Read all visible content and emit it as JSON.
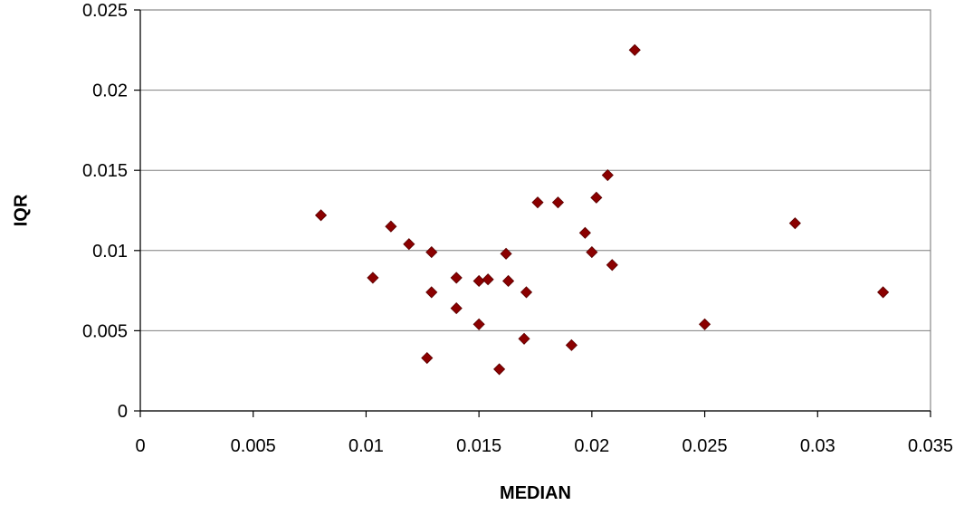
{
  "chart_data": {
    "type": "scatter",
    "title": "",
    "xlabel": "MEDIAN",
    "ylabel": "IQR",
    "xlim": [
      0,
      0.035
    ],
    "ylim": [
      0,
      0.025
    ],
    "x_ticks": [
      "0",
      "0.005",
      "0.01",
      "0.015",
      "0.02",
      "0.025",
      "0.03",
      "0.035"
    ],
    "y_ticks": [
      "0",
      "0.005",
      "0.01",
      "0.015",
      "0.02",
      "0.025"
    ],
    "grid": "horizontal",
    "legend": "none",
    "marker": "diamond",
    "marker_color": "#8b0000",
    "series": [
      {
        "points": [
          [
            0.008,
            0.0122
          ],
          [
            0.0103,
            0.0083
          ],
          [
            0.0111,
            0.0115
          ],
          [
            0.0119,
            0.0104
          ],
          [
            0.0127,
            0.0033
          ],
          [
            0.0129,
            0.0074
          ],
          [
            0.0129,
            0.0099
          ],
          [
            0.014,
            0.0064
          ],
          [
            0.014,
            0.0083
          ],
          [
            0.015,
            0.0054
          ],
          [
            0.015,
            0.0081
          ],
          [
            0.0154,
            0.0082
          ],
          [
            0.0159,
            0.0026
          ],
          [
            0.0162,
            0.0098
          ],
          [
            0.0163,
            0.0081
          ],
          [
            0.017,
            0.0045
          ],
          [
            0.0171,
            0.0074
          ],
          [
            0.0176,
            0.013
          ],
          [
            0.0185,
            0.013
          ],
          [
            0.0191,
            0.0041
          ],
          [
            0.0197,
            0.0111
          ],
          [
            0.02,
            0.0099
          ],
          [
            0.0202,
            0.0133
          ],
          [
            0.0207,
            0.0147
          ],
          [
            0.0209,
            0.0091
          ],
          [
            0.0219,
            0.0225
          ],
          [
            0.025,
            0.0054
          ],
          [
            0.029,
            0.0117
          ],
          [
            0.0329,
            0.0074
          ]
        ]
      }
    ]
  }
}
